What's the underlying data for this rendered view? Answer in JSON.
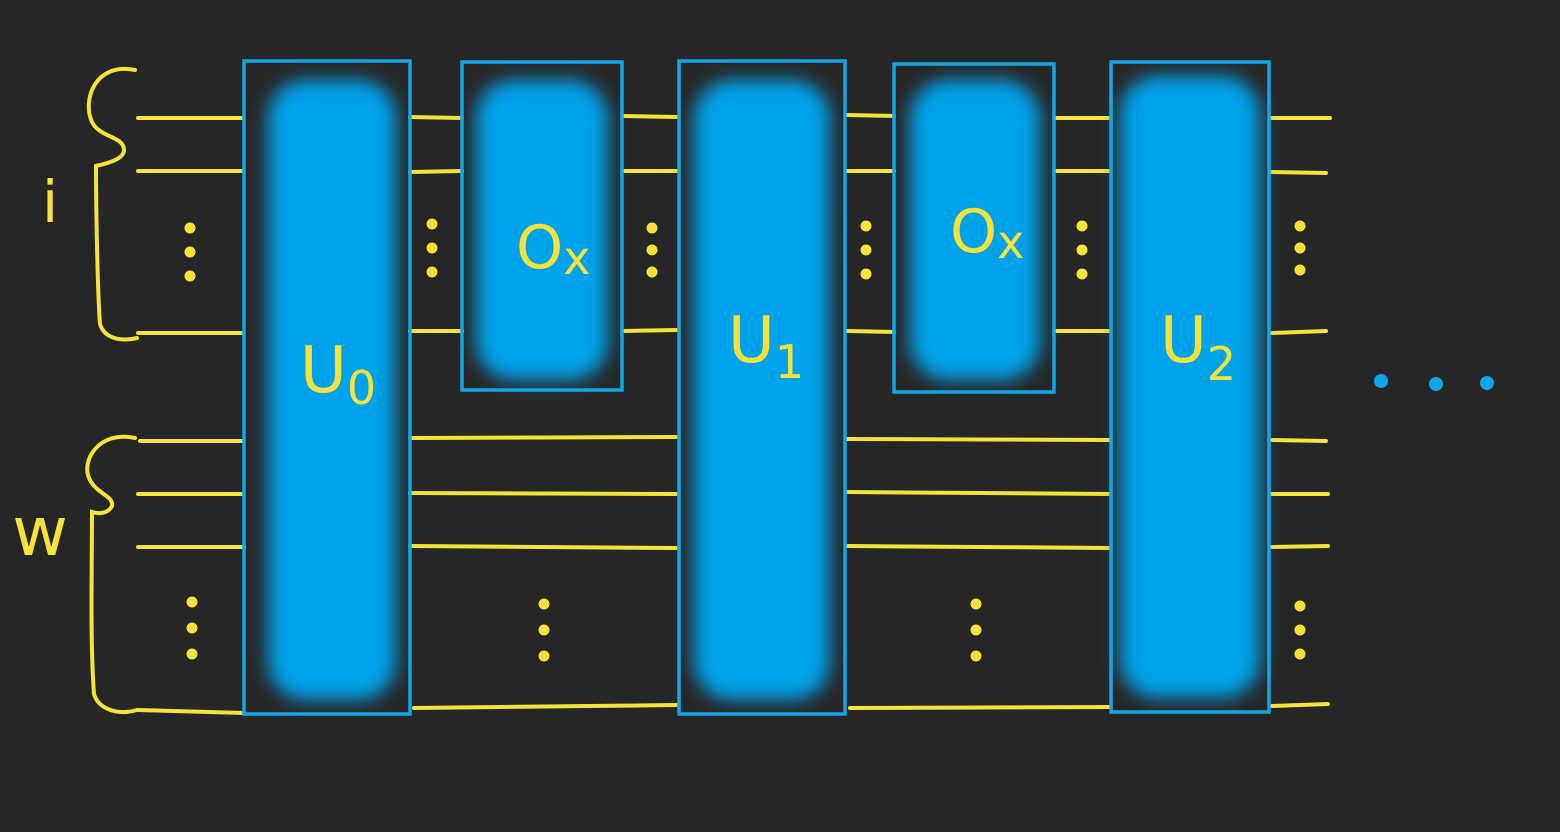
{
  "colors": {
    "background": "#262626",
    "wire": "#F5E23A",
    "gate_fill": "#00A2EA",
    "gate_border": "#12A6E8",
    "continuation_dots": "#0EA5E9"
  },
  "registers": {
    "top": {
      "label": "i"
    },
    "bottom": {
      "label": "w"
    }
  },
  "gates": [
    {
      "id": "u0",
      "label": "U",
      "subscript": "0",
      "kind": "unitary",
      "spans": "all-wires"
    },
    {
      "id": "ox1",
      "label": "O",
      "subscript": "x",
      "kind": "oracle",
      "spans": "top-register"
    },
    {
      "id": "u1",
      "label": "U",
      "subscript": "1",
      "kind": "unitary",
      "spans": "all-wires"
    },
    {
      "id": "ox2",
      "label": "O",
      "subscript": "x",
      "kind": "oracle",
      "spans": "top-register"
    },
    {
      "id": "u2",
      "label": "U",
      "subscript": "2",
      "kind": "unitary",
      "spans": "all-wires"
    }
  ],
  "continuation": {
    "icon": "ellipsis-icon"
  }
}
